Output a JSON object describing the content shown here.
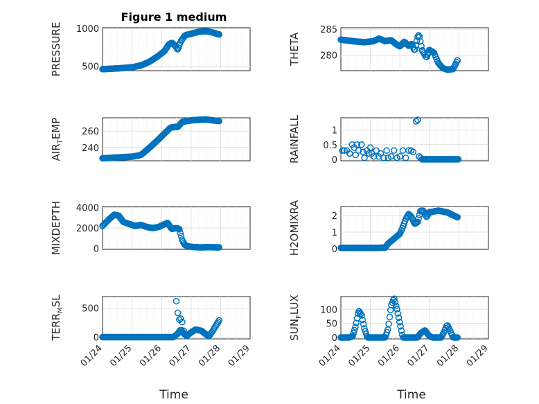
{
  "figure": {
    "title": "Figure 1 medium",
    "xlabel_left": "Time",
    "xlabel_right": "Time",
    "x_tick_labels": [
      "01/24",
      "01/25",
      "01/26",
      "01/27",
      "01/28",
      "01/29"
    ],
    "marker_color": "#0072bd"
  },
  "chart_data": [
    {
      "type": "scatter",
      "ylabel": {
        "main": "PRESSURE",
        "sub": "",
        "tail": ""
      },
      "xlim": [
        0,
        5
      ],
      "ylim": [
        440,
        1010
      ],
      "yticks": [
        500,
        1000
      ],
      "ytick_labels": [
        "500",
        "1000"
      ],
      "keypoints": [
        [
          0,
          460
        ],
        [
          0.5,
          470
        ],
        [
          1,
          485
        ],
        [
          1.3,
          510
        ],
        [
          1.6,
          560
        ],
        [
          1.9,
          640
        ],
        [
          2.1,
          700
        ],
        [
          2.25,
          790
        ],
        [
          2.35,
          810
        ],
        [
          2.45,
          775
        ],
        [
          2.55,
          720
        ],
        [
          2.65,
          830
        ],
        [
          2.8,
          910
        ],
        [
          3,
          930
        ],
        [
          3.25,
          955
        ],
        [
          3.5,
          965
        ],
        [
          3.75,
          945
        ],
        [
          3.95,
          920
        ]
      ]
    },
    {
      "type": "scatter",
      "ylabel": {
        "main": "THETA",
        "sub": "",
        "tail": ""
      },
      "xlim": [
        0,
        5
      ],
      "ylim": [
        277,
        285.3
      ],
      "yticks": [
        280,
        285
      ],
      "ytick_labels": [
        "280",
        "285"
      ],
      "keypoints": [
        [
          0,
          283
        ],
        [
          0.4,
          282.7
        ],
        [
          0.8,
          282.5
        ],
        [
          1.1,
          282.7
        ],
        [
          1.3,
          283.2
        ],
        [
          1.5,
          282.7
        ],
        [
          1.7,
          282.9
        ],
        [
          1.85,
          282.2
        ],
        [
          2,
          281.7
        ],
        [
          2.15,
          282.6
        ],
        [
          2.3,
          281.8
        ],
        [
          2.4,
          282.2
        ],
        [
          2.5,
          280.8
        ],
        [
          2.6,
          283.5
        ],
        [
          2.65,
          284
        ],
        [
          2.75,
          281
        ],
        [
          2.9,
          279.5
        ],
        [
          3,
          281
        ],
        [
          3.15,
          280.5
        ],
        [
          3.3,
          278.5
        ],
        [
          3.45,
          277.5
        ],
        [
          3.6,
          277.2
        ],
        [
          3.8,
          277.3
        ],
        [
          3.95,
          279
        ]
      ]
    },
    {
      "type": "scatter",
      "ylabel": {
        "main": "AIR",
        "sub": "T",
        "tail": "EMP"
      },
      "xlim": [
        0,
        5
      ],
      "ylim": [
        224,
        276
      ],
      "yticks": [
        240,
        260
      ],
      "ytick_labels": [
        "240",
        "260"
      ],
      "keypoints": [
        [
          0,
          227
        ],
        [
          0.5,
          228
        ],
        [
          1,
          229
        ],
        [
          1.3,
          231
        ],
        [
          1.6,
          240
        ],
        [
          1.9,
          250
        ],
        [
          2.1,
          257
        ],
        [
          2.3,
          264
        ],
        [
          2.45,
          265
        ],
        [
          2.55,
          265
        ],
        [
          2.7,
          271
        ],
        [
          3,
          273
        ],
        [
          3.5,
          274
        ],
        [
          3.95,
          272
        ]
      ]
    },
    {
      "type": "scatter",
      "ylabel": {
        "main": "RAINFALL",
        "sub": "",
        "tail": ""
      },
      "xlim": [
        0,
        5
      ],
      "ylim": [
        -0.05,
        1.42
      ],
      "yticks": [
        0,
        0.5,
        1
      ],
      "ytick_labels": [
        "0",
        "0.5",
        "1"
      ],
      "points": [
        [
          0.05,
          0.3
        ],
        [
          0.12,
          0.3
        ],
        [
          0.2,
          0.3
        ],
        [
          0.3,
          0.2
        ],
        [
          0.38,
          0.5
        ],
        [
          0.45,
          0.4
        ],
        [
          0.5,
          0.15
        ],
        [
          0.55,
          0.5
        ],
        [
          0.6,
          0.3
        ],
        [
          0.7,
          0.5
        ],
        [
          0.75,
          0.25
        ],
        [
          0.8,
          0.05
        ],
        [
          0.88,
          0.3
        ],
        [
          0.95,
          0.2
        ],
        [
          1.0,
          0.4
        ],
        [
          1.05,
          0.2
        ],
        [
          1.12,
          0.1
        ],
        [
          1.2,
          0.3
        ],
        [
          1.28,
          0.1
        ],
        [
          1.35,
          0.2
        ],
        [
          1.45,
          0.05
        ],
        [
          1.55,
          0.3
        ],
        [
          1.6,
          0.05
        ],
        [
          1.7,
          0.1
        ],
        [
          1.8,
          0.3
        ],
        [
          1.9,
          0.05
        ],
        [
          2.0,
          0.1
        ],
        [
          2.1,
          0.3
        ],
        [
          2.2,
          0.05
        ],
        [
          2.3,
          0.3
        ],
        [
          2.38,
          0.3
        ],
        [
          2.45,
          0.25
        ],
        [
          2.55,
          1.3
        ],
        [
          2.6,
          1.35
        ],
        [
          2.65,
          0.1
        ],
        [
          2.7,
          0.05
        ]
      ],
      "zero_run": [
        2.75,
        4.0,
        0
      ]
    },
    {
      "type": "scatter",
      "ylabel": {
        "main": "MIXDEPTH",
        "sub": "",
        "tail": ""
      },
      "xlim": [
        0,
        5
      ],
      "ylim": [
        -100,
        4100
      ],
      "yticks": [
        0,
        2000,
        4000
      ],
      "ytick_labels": [
        "0",
        "2000",
        "4000"
      ],
      "keypoints": [
        [
          0,
          2200
        ],
        [
          0.2,
          2800
        ],
        [
          0.4,
          3300
        ],
        [
          0.55,
          3200
        ],
        [
          0.7,
          2600
        ],
        [
          0.9,
          2400
        ],
        [
          1.1,
          2200
        ],
        [
          1.3,
          2300
        ],
        [
          1.5,
          2100
        ],
        [
          1.7,
          2000
        ],
        [
          1.9,
          2100
        ],
        [
          2.05,
          2300
        ],
        [
          2.2,
          2500
        ],
        [
          2.35,
          1900
        ],
        [
          2.5,
          2000
        ],
        [
          2.6,
          1900
        ],
        [
          2.7,
          800
        ],
        [
          2.8,
          300
        ],
        [
          3,
          150
        ],
        [
          3.3,
          100
        ],
        [
          3.6,
          120
        ],
        [
          3.95,
          100
        ]
      ]
    },
    {
      "type": "scatter",
      "ylabel": {
        "main": "H2OMIXRA",
        "sub": "",
        "tail": ""
      },
      "xlim": [
        0,
        5
      ],
      "ylim": [
        -0.05,
        2.55
      ],
      "yticks": [
        0,
        1,
        2
      ],
      "ytick_labels": [
        "0",
        "1",
        "2"
      ],
      "keypoints": [
        [
          0,
          0.05
        ],
        [
          0.6,
          0.05
        ],
        [
          1.2,
          0.05
        ],
        [
          1.5,
          0.06
        ],
        [
          1.6,
          0.3
        ],
        [
          1.8,
          0.6
        ],
        [
          2,
          0.9
        ],
        [
          2.1,
          1.3
        ],
        [
          2.2,
          1.8
        ],
        [
          2.3,
          2.1
        ],
        [
          2.4,
          1.9
        ],
        [
          2.5,
          1.5
        ],
        [
          2.6,
          1.6
        ],
        [
          2.7,
          2.3
        ],
        [
          2.8,
          2.3
        ],
        [
          2.9,
          1.9
        ],
        [
          3,
          2.2
        ],
        [
          3.3,
          2.3
        ],
        [
          3.6,
          2.2
        ],
        [
          3.95,
          1.9
        ]
      ]
    },
    {
      "type": "scatter",
      "ylabel": {
        "main": "TERR",
        "sub": "M",
        "tail": "SL"
      },
      "xlim": [
        0,
        5
      ],
      "ylim": [
        -30,
        700
      ],
      "yticks": [
        0,
        500
      ],
      "ytick_labels": [
        "0",
        "500"
      ],
      "keypoints": [
        [
          0,
          0
        ],
        [
          1,
          0
        ],
        [
          2,
          0
        ],
        [
          2.4,
          0
        ],
        [
          2.55,
          60
        ],
        [
          2.65,
          130
        ],
        [
          2.75,
          60
        ],
        [
          2.85,
          20
        ],
        [
          3,
          80
        ],
        [
          3.15,
          130
        ],
        [
          3.35,
          110
        ],
        [
          3.5,
          50
        ],
        [
          3.6,
          10
        ],
        [
          3.75,
          120
        ],
        [
          3.95,
          290
        ]
      ],
      "extra_points": [
        [
          2.5,
          620
        ],
        [
          2.55,
          420
        ],
        [
          2.6,
          300
        ],
        [
          2.65,
          320
        ],
        [
          2.7,
          260
        ],
        [
          2.75,
          110
        ]
      ]
    },
    {
      "type": "scatter",
      "ylabel": {
        "main": "SUN",
        "sub": "F",
        "tail": "LUX"
      },
      "xlim": [
        0,
        5
      ],
      "ylim": [
        -5,
        145
      ],
      "yticks": [
        0,
        50,
        100
      ],
      "ytick_labels": [
        "0",
        "50",
        "100"
      ],
      "keypoints": [
        [
          0,
          0
        ],
        [
          0.3,
          0
        ],
        [
          0.4,
          5
        ],
        [
          0.5,
          40
        ],
        [
          0.6,
          95
        ],
        [
          0.7,
          80
        ],
        [
          0.8,
          30
        ],
        [
          0.9,
          0
        ],
        [
          1.5,
          0
        ],
        [
          1.6,
          30
        ],
        [
          1.7,
          110
        ],
        [
          1.8,
          140
        ],
        [
          1.9,
          100
        ],
        [
          2,
          50
        ],
        [
          2.1,
          0
        ],
        [
          2.6,
          0
        ],
        [
          2.7,
          15
        ],
        [
          2.85,
          25
        ],
        [
          3,
          5
        ],
        [
          3.1,
          0
        ],
        [
          3.4,
          0
        ],
        [
          3.5,
          20
        ],
        [
          3.6,
          45
        ],
        [
          3.7,
          25
        ],
        [
          3.8,
          0
        ],
        [
          3.95,
          0
        ]
      ]
    }
  ]
}
